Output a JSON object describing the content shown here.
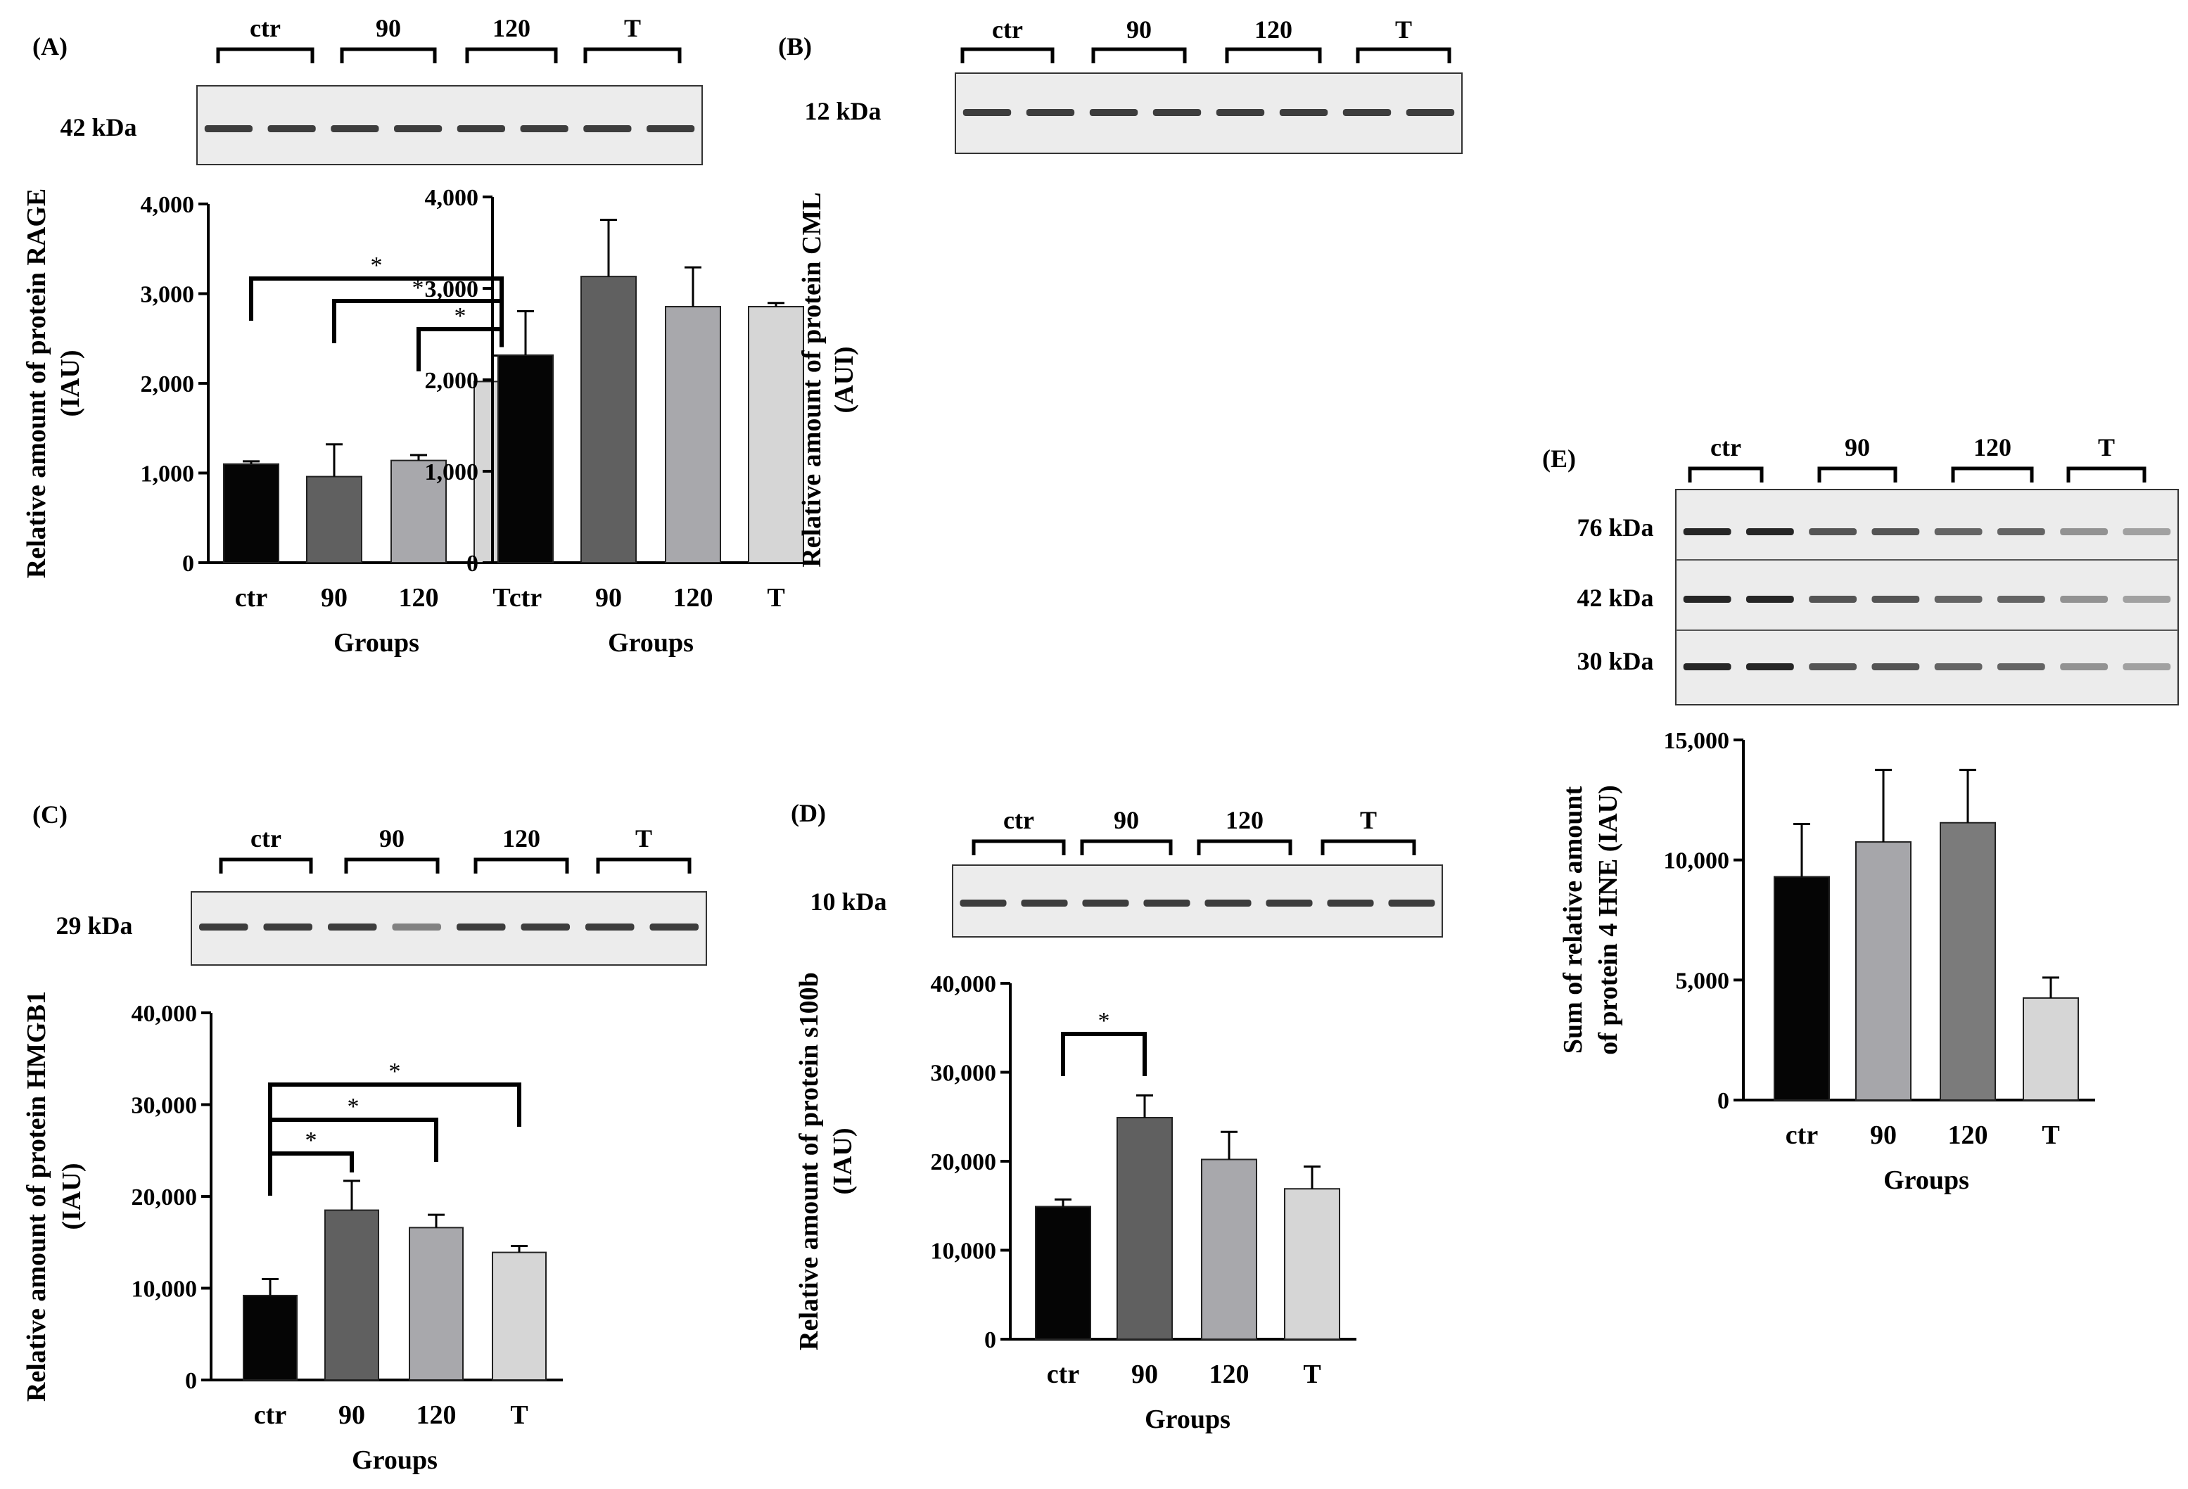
{
  "colors": {
    "ctr": "#050505",
    "90": "#606060",
    "120": "#a8a8ac",
    "T": "#d6d6d6",
    "E_90": "#a6a6aa",
    "E_120": "#7b7b7b",
    "blot_bg": "#ececec",
    "band": "#2a2a2a"
  },
  "chart_data": [
    {
      "panel": "(A)",
      "type": "bar",
      "categories": [
        "ctr",
        "90",
        "120",
        "T"
      ],
      "values": [
        1100,
        960,
        1140,
        2020
      ],
      "errors": [
        30,
        360,
        60,
        290
      ],
      "ylabel": [
        "Relative amount of protein RAGE",
        "(IAU)"
      ],
      "xlabel": "Groups",
      "ylim": [
        0,
        4000
      ],
      "yticks": [
        "0",
        "1,000",
        "2,000",
        "3,000",
        "4,000"
      ],
      "significance": [
        {
          "from": "ctr",
          "to": "T",
          "label": "*"
        },
        {
          "from": "90",
          "to": "T",
          "label": "*"
        },
        {
          "from": "120",
          "to": "T",
          "label": "*"
        }
      ],
      "blot": {
        "lane_groups": [
          "ctr",
          "90",
          "120",
          "T"
        ],
        "markers": [
          "42 kDa"
        ]
      }
    },
    {
      "panel": "(B)",
      "type": "bar",
      "categories": [
        "ctr",
        "90",
        "120",
        "T"
      ],
      "values": [
        2270,
        3130,
        2800,
        2800
      ],
      "errors": [
        480,
        620,
        430,
        40
      ],
      "ylabel": [
        "Relative amount of protein CML",
        "(AUI)"
      ],
      "xlabel": "Groups",
      "ylim": [
        0,
        4000
      ],
      "yticks": [
        "0",
        "1,000",
        "2,000",
        "3,000",
        "4,000"
      ],
      "significance": [],
      "blot": {
        "lane_groups": [
          "ctr",
          "90",
          "120",
          "T"
        ],
        "markers": [
          "12 kDa"
        ]
      }
    },
    {
      "panel": "(C)",
      "type": "bar",
      "categories": [
        "ctr",
        "90",
        "120",
        "T"
      ],
      "values": [
        9200,
        18500,
        16600,
        13900
      ],
      "errors": [
        1800,
        3200,
        1400,
        700
      ],
      "ylabel": [
        "Relative amount of protein HMGB1",
        "(IAU)"
      ],
      "xlabel": "Groups",
      "ylim": [
        0,
        40000
      ],
      "yticks": [
        "0",
        "10,000",
        "20,000",
        "30,000",
        "40,000"
      ],
      "significance": [
        {
          "from": "ctr",
          "to": "90",
          "label": "*"
        },
        {
          "from": "ctr",
          "to": "120",
          "label": "*"
        },
        {
          "from": "ctr",
          "to": "T",
          "label": "*"
        }
      ],
      "blot": {
        "lane_groups": [
          "ctr",
          "90",
          "120",
          "T"
        ],
        "markers": [
          "29 kDa"
        ]
      }
    },
    {
      "panel": "(D)",
      "type": "bar",
      "categories": [
        "ctr",
        "90",
        "120",
        "T"
      ],
      "values": [
        14900,
        24900,
        20200,
        16900
      ],
      "errors": [
        800,
        2500,
        3100,
        2500
      ],
      "ylabel": [
        "Relative amount of protein s100b",
        "(IAU)"
      ],
      "xlabel": "Groups",
      "ylim": [
        0,
        40000
      ],
      "yticks": [
        "0",
        "10,000",
        "20,000",
        "30,000",
        "40,000"
      ],
      "significance": [
        {
          "from": "ctr",
          "to": "90",
          "label": "*"
        }
      ],
      "blot": {
        "lane_groups": [
          "ctr",
          "90",
          "120",
          "T"
        ],
        "markers": [
          "10 kDa"
        ]
      }
    },
    {
      "panel": "(E)",
      "type": "bar",
      "categories": [
        "ctr",
        "90",
        "120",
        "T"
      ],
      "values": [
        9300,
        10750,
        11550,
        4250
      ],
      "errors": [
        2200,
        3000,
        2200,
        850
      ],
      "ylabel": [
        "Sum of relative amount",
        "of protein 4 HNE (IAU)"
      ],
      "xlabel": "Groups",
      "ylim": [
        0,
        15000
      ],
      "yticks": [
        "0",
        "5,000",
        "10,000",
        "15,000"
      ],
      "significance": [],
      "blot": {
        "lane_groups": [
          "ctr",
          "90",
          "120",
          "T"
        ],
        "markers": [
          "76 kDa",
          "42 kDa",
          "30 kDa"
        ]
      }
    }
  ]
}
